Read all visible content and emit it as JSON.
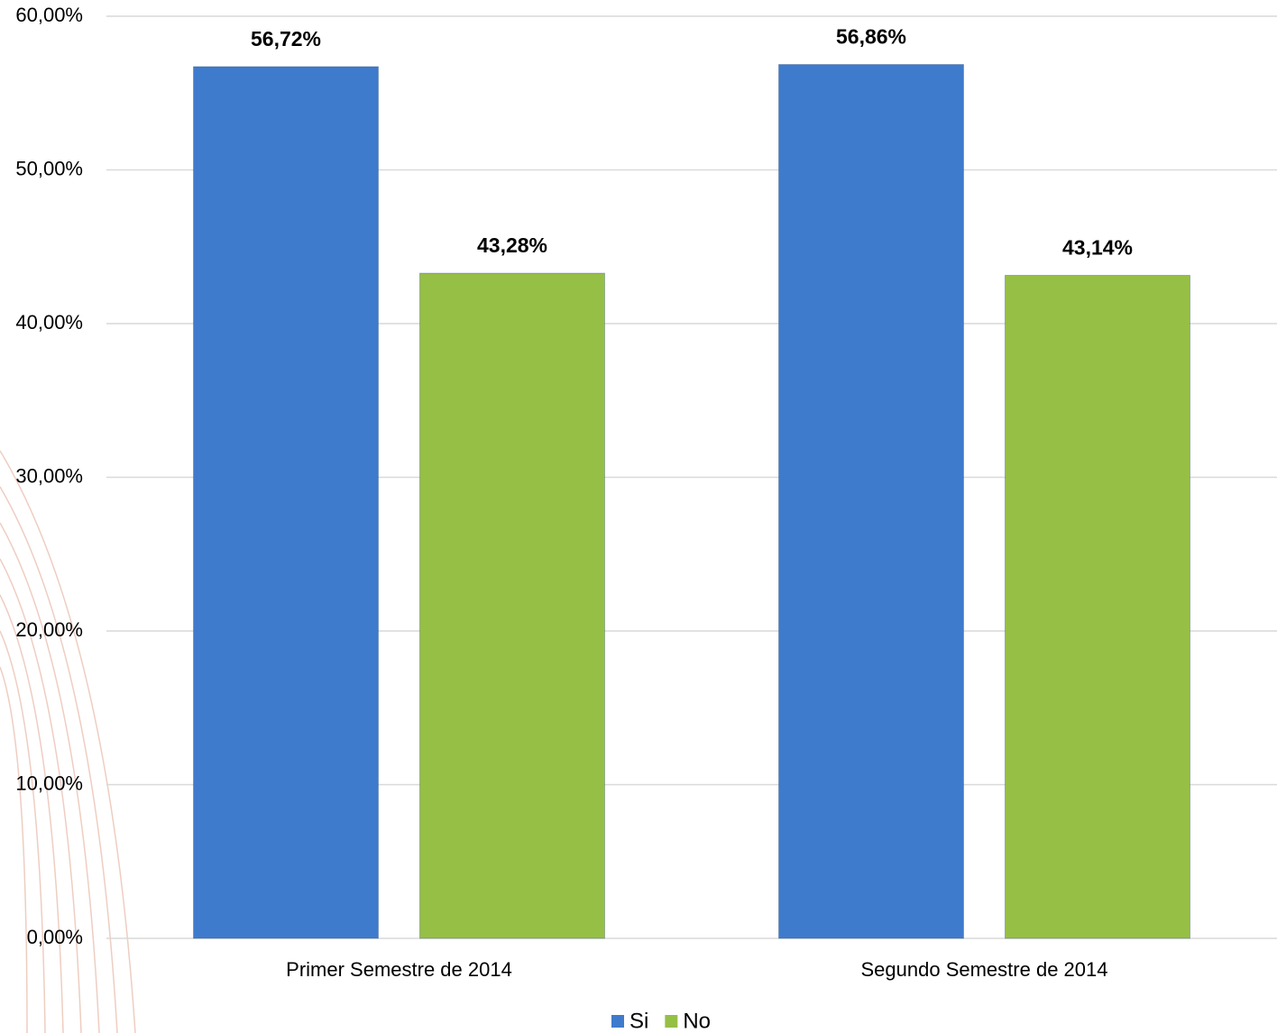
{
  "chart_data": {
    "type": "bar",
    "categories": [
      "Primer Semestre de 2014",
      "Segundo Semestre de 2014"
    ],
    "series": [
      {
        "name": "Si",
        "color": "#3f7bcc",
        "values": [
          56.72,
          56.86
        ],
        "value_labels": [
          "56,72%",
          "56,86%"
        ]
      },
      {
        "name": "No",
        "color": "#96bf45",
        "values": [
          43.28,
          43.14
        ],
        "value_labels": [
          "43,28%",
          "43,14%"
        ]
      }
    ],
    "ylim": [
      0,
      60
    ],
    "yticks": [
      {
        "value": 0,
        "label": "0,00%"
      },
      {
        "value": 10,
        "label": "10,00%"
      },
      {
        "value": 20,
        "label": "20,00%"
      },
      {
        "value": 30,
        "label": "30,00%"
      },
      {
        "value": 40,
        "label": "40,00%"
      },
      {
        "value": 50,
        "label": "50,00%"
      },
      {
        "value": 60,
        "label": "60,00%"
      }
    ],
    "grid": true,
    "legend": "bottom"
  }
}
